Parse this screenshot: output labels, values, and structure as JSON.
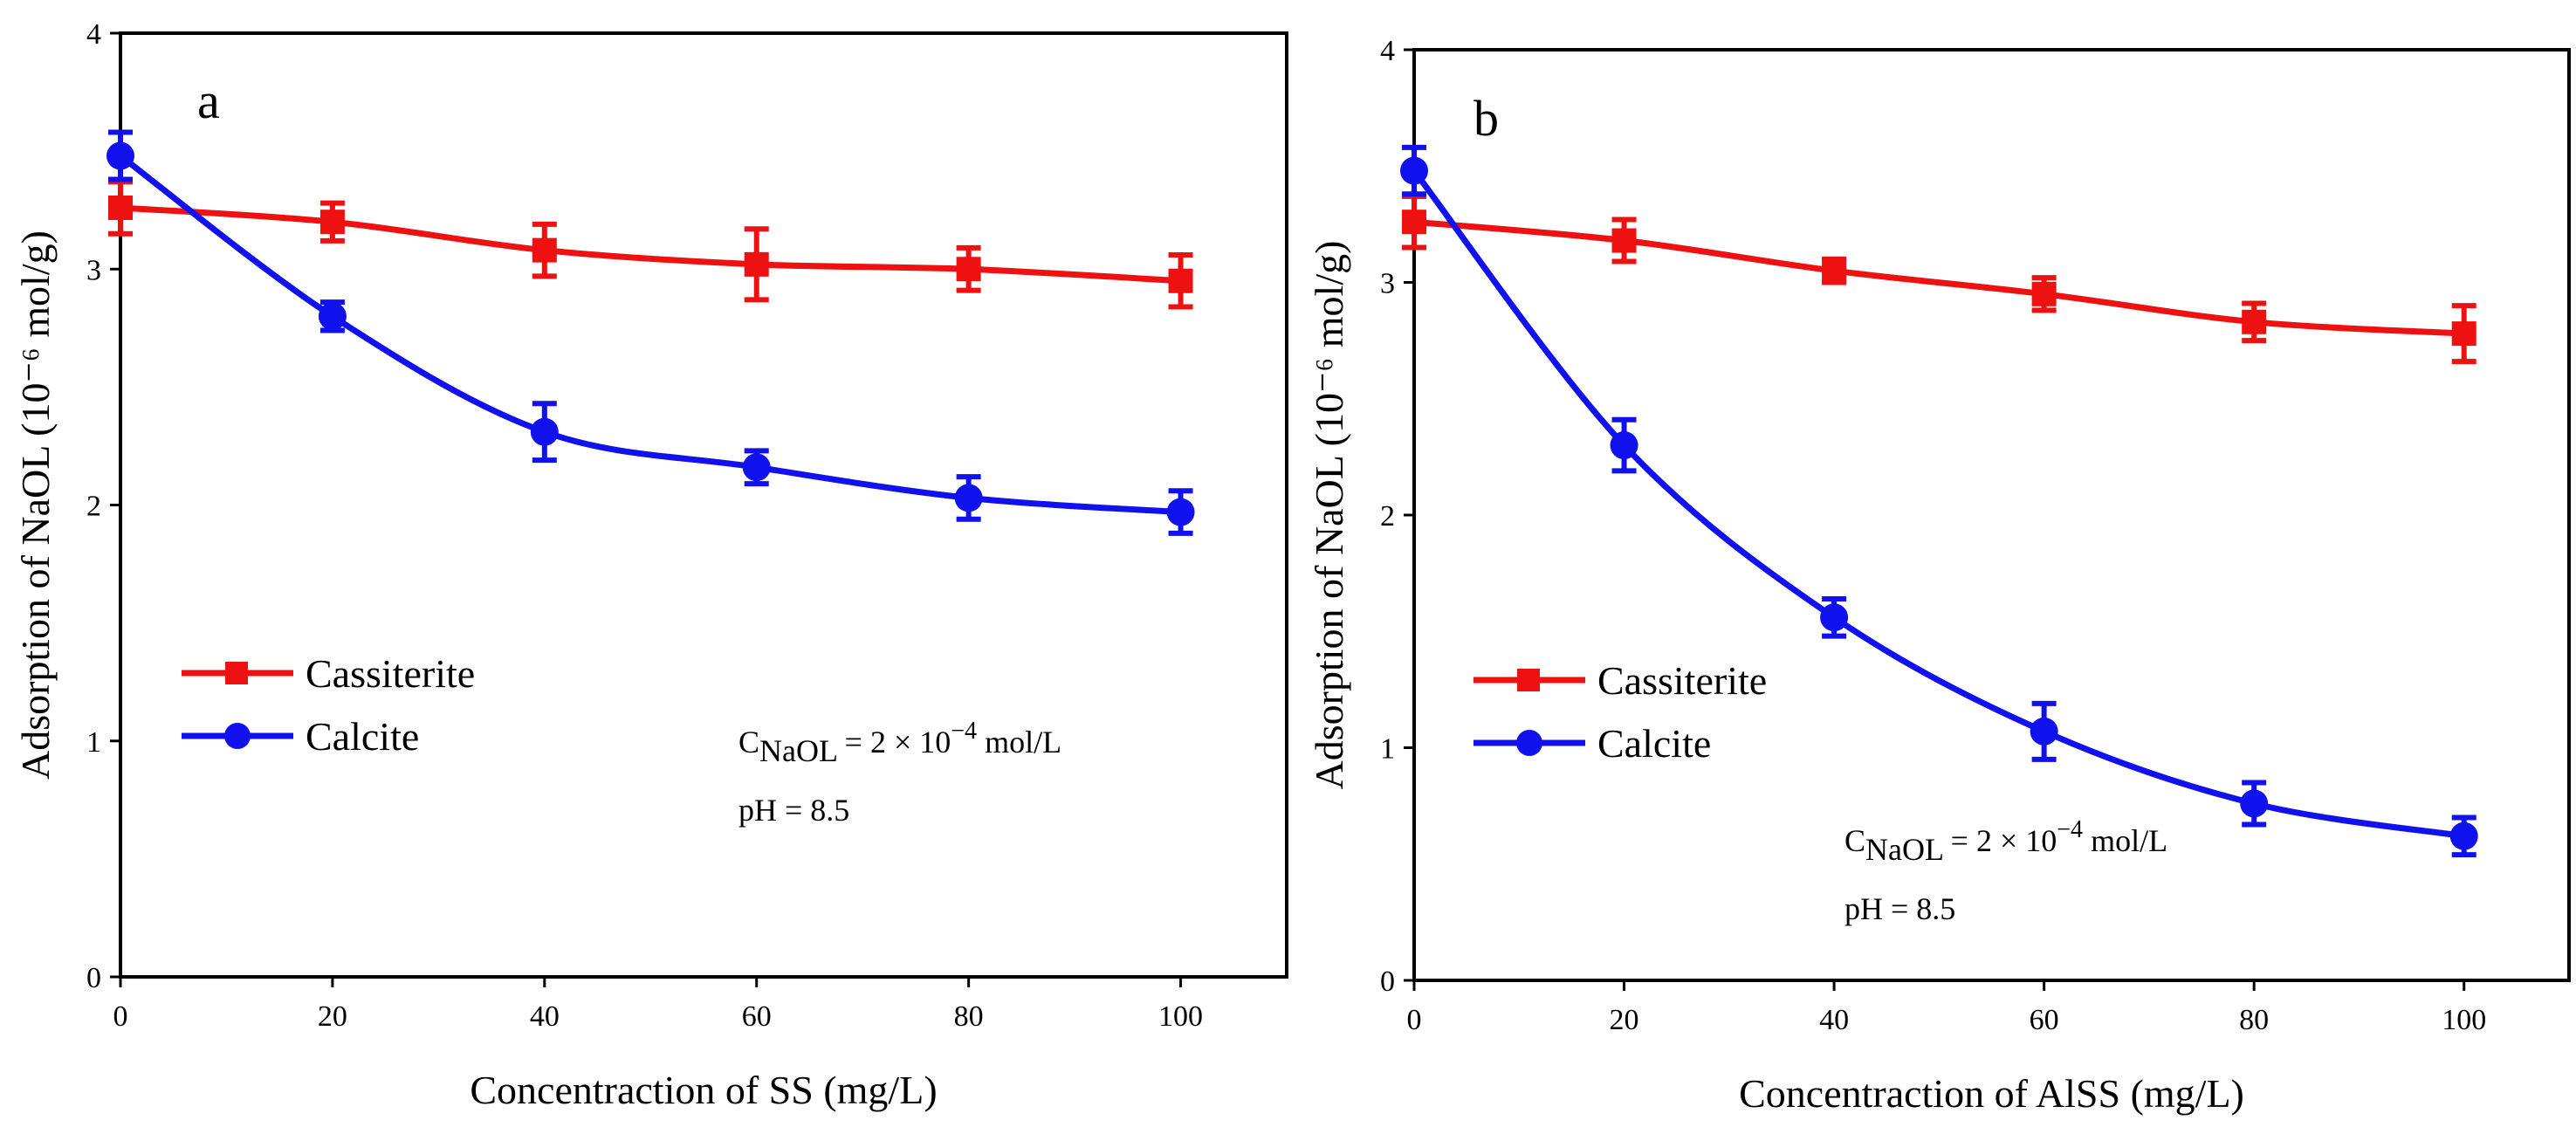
{
  "chart_data": [
    {
      "type": "line",
      "panel_label": "a",
      "xlabel": "Concentraction of SS (mg/L)",
      "ylabel": "Adsorption of NaOL (10⁻⁶ mol/g)",
      "xlim": [
        0,
        110
      ],
      "ylim": [
        0,
        4
      ],
      "xticks": [
        0,
        20,
        40,
        60,
        80,
        100
      ],
      "yticks": [
        0,
        1,
        2,
        3,
        4
      ],
      "x": [
        0,
        20,
        40,
        60,
        80,
        100
      ],
      "series": [
        {
          "name": "Cassiterite",
          "color": "#ee1111",
          "marker": "square",
          "values": [
            3.26,
            3.2,
            3.08,
            3.02,
            3.0,
            2.95
          ],
          "errors": [
            0.11,
            0.08,
            0.11,
            0.15,
            0.09,
            0.11
          ]
        },
        {
          "name": "Calcite",
          "color": "#1111ee",
          "marker": "circle",
          "values": [
            3.48,
            2.8,
            2.31,
            2.16,
            2.03,
            1.97
          ],
          "errors": [
            0.1,
            0.06,
            0.12,
            0.07,
            0.09,
            0.09
          ]
        }
      ],
      "annotations": {
        "conc_main": "C",
        "conc_sub": "NaOL",
        "conc_rest": " = 2 × 10",
        "conc_exp": "−4",
        "conc_unit": " mol/L",
        "ph": "pH = 8.5"
      },
      "legend": "middle-left"
    },
    {
      "type": "line",
      "panel_label": "b",
      "xlabel": "Concentraction of AlSS (mg/L)",
      "ylabel": "Adsorption of NaOL (10⁻⁶ mol/g)",
      "xlim": [
        0,
        110
      ],
      "ylim": [
        0,
        4
      ],
      "xticks": [
        0,
        20,
        40,
        60,
        80,
        100
      ],
      "yticks": [
        0,
        1,
        2,
        3,
        4
      ],
      "x": [
        0,
        20,
        40,
        60,
        80,
        100
      ],
      "series": [
        {
          "name": "Cassiterite",
          "color": "#ee1111",
          "marker": "square",
          "values": [
            3.26,
            3.18,
            3.05,
            2.95,
            2.83,
            2.78
          ],
          "errors": [
            0.11,
            0.09,
            0.05,
            0.07,
            0.08,
            0.12
          ]
        },
        {
          "name": "Calcite",
          "color": "#1111ee",
          "marker": "circle",
          "values": [
            3.48,
            2.3,
            1.56,
            1.07,
            0.76,
            0.62
          ],
          "errors": [
            0.1,
            0.11,
            0.08,
            0.12,
            0.09,
            0.08
          ]
        }
      ],
      "annotations": {
        "conc_main": "C",
        "conc_sub": "NaOL",
        "conc_rest": " = 2 × 10",
        "conc_exp": "−4",
        "conc_unit": " mol/L",
        "ph": "pH = 8.5"
      },
      "legend": "middle-left"
    }
  ]
}
